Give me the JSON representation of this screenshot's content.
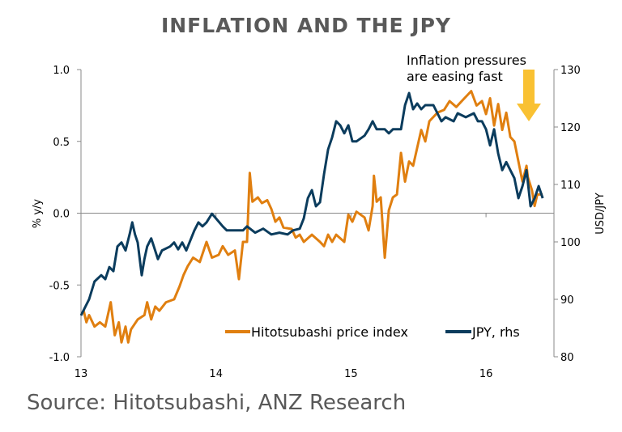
{
  "chart_data": {
    "type": "line",
    "title": "INFLATION AND THE JPY",
    "source": "Source: Hitotsubashi, ANZ Research",
    "annotation": [
      "Inflation pressures",
      "are easing fast"
    ],
    "annotation_arrow_color": "#F9C132",
    "xlabel": "",
    "ylabel": "% y/y",
    "ylabel_right": "USD/JPY",
    "xlim": [
      13,
      16.5
    ],
    "ylim": [
      -1.0,
      1.0
    ],
    "ylim_right": [
      80,
      130
    ],
    "x_ticks": [
      "13",
      "14",
      "15",
      "16"
    ],
    "y_ticks": [
      "1.0",
      "0.5",
      "0.0",
      "-0.5",
      "-1.0"
    ],
    "y_ticks_right": [
      "130",
      "120",
      "110",
      "100",
      "90",
      "80"
    ],
    "legend_position": "bottom-right",
    "series": [
      {
        "name": "Hitotsubashi price index",
        "axis": "left",
        "color": "#E07F10",
        "x": [
          13.02,
          13.04,
          13.06,
          13.1,
          13.14,
          13.18,
          13.22,
          13.25,
          13.28,
          13.3,
          13.33,
          13.35,
          13.37,
          13.42,
          13.47,
          13.49,
          13.52,
          13.55,
          13.58,
          13.63,
          13.69,
          13.73,
          13.76,
          13.79,
          13.83,
          13.88,
          13.93,
          13.97,
          14.02,
          14.05,
          14.09,
          14.14,
          14.17,
          14.2,
          14.23,
          14.25,
          14.27,
          14.31,
          14.34,
          14.38,
          14.41,
          14.44,
          14.47,
          14.5,
          14.56,
          14.59,
          14.62,
          14.65,
          14.71,
          14.77,
          14.8,
          14.83,
          14.86,
          14.89,
          14.95,
          14.98,
          15.01,
          15.04,
          15.1,
          15.13,
          15.16,
          15.17,
          15.19,
          15.22,
          15.25,
          15.28,
          15.31,
          15.34,
          15.37,
          15.4,
          15.43,
          15.46,
          15.52,
          15.55,
          15.58,
          15.64,
          15.69,
          15.73,
          15.78,
          15.82,
          15.89,
          15.93,
          15.97,
          16.0,
          16.03,
          16.06,
          16.09,
          16.12,
          16.15,
          16.18,
          16.21,
          16.24,
          16.27,
          16.3,
          16.31,
          16.34,
          16.36,
          16.38,
          16.42
        ],
        "values": [
          -0.68,
          -0.76,
          -0.71,
          -0.79,
          -0.76,
          -0.79,
          -0.62,
          -0.85,
          -0.76,
          -0.9,
          -0.79,
          -0.9,
          -0.81,
          -0.74,
          -0.71,
          -0.62,
          -0.74,
          -0.65,
          -0.68,
          -0.62,
          -0.6,
          -0.51,
          -0.43,
          -0.37,
          -0.31,
          -0.34,
          -0.2,
          -0.31,
          -0.29,
          -0.23,
          -0.29,
          -0.26,
          -0.46,
          -0.2,
          -0.2,
          0.28,
          0.08,
          0.11,
          0.07,
          0.09,
          0.03,
          -0.06,
          -0.03,
          -0.1,
          -0.11,
          -0.17,
          -0.15,
          -0.2,
          -0.15,
          -0.2,
          -0.23,
          -0.15,
          -0.2,
          -0.15,
          -0.2,
          -0.01,
          -0.06,
          0.01,
          -0.03,
          -0.12,
          0.05,
          0.26,
          0.08,
          0.11,
          -0.31,
          0.02,
          0.11,
          0.13,
          0.42,
          0.22,
          0.36,
          0.33,
          0.58,
          0.5,
          0.64,
          0.7,
          0.72,
          0.78,
          0.74,
          0.78,
          0.85,
          0.75,
          0.78,
          0.69,
          0.8,
          0.61,
          0.76,
          0.58,
          0.7,
          0.53,
          0.5,
          0.36,
          0.22,
          0.33,
          0.25,
          0.16,
          0.05,
          0.13,
          0.13
        ]
      },
      {
        "name": "JPY, rhs",
        "axis": "right",
        "color": "#0B3C5D",
        "x": [
          13.0,
          13.06,
          13.1,
          13.15,
          13.18,
          13.21,
          13.24,
          13.27,
          13.3,
          13.33,
          13.36,
          13.38,
          13.4,
          13.42,
          13.45,
          13.47,
          13.49,
          13.52,
          13.54,
          13.57,
          13.6,
          13.66,
          13.69,
          13.72,
          13.75,
          13.78,
          13.84,
          13.87,
          13.9,
          13.93,
          13.97,
          14.01,
          14.05,
          14.08,
          14.14,
          14.2,
          14.23,
          14.29,
          14.35,
          14.41,
          14.47,
          14.53,
          14.57,
          14.62,
          14.65,
          14.68,
          14.71,
          14.74,
          14.77,
          14.8,
          14.83,
          14.86,
          14.89,
          14.92,
          14.95,
          14.98,
          15.01,
          15.04,
          15.1,
          15.13,
          15.16,
          15.19,
          15.25,
          15.28,
          15.31,
          15.37,
          15.4,
          15.43,
          15.46,
          15.49,
          15.52,
          15.55,
          15.61,
          15.64,
          15.67,
          15.7,
          15.76,
          15.79,
          15.85,
          15.91,
          15.94,
          15.97,
          16.0,
          16.03,
          16.06,
          16.09,
          16.12,
          16.15,
          16.18,
          16.21,
          16.24,
          16.27,
          16.3,
          16.33,
          16.36,
          16.39,
          16.42
        ],
        "values": [
          87.2,
          90.0,
          93.1,
          94.2,
          93.5,
          95.6,
          94.9,
          99.2,
          99.9,
          98.5,
          101.3,
          103.4,
          101.3,
          99.9,
          94.2,
          97.0,
          99.2,
          100.6,
          99.2,
          97.0,
          98.5,
          99.2,
          99.9,
          98.7,
          99.9,
          98.5,
          102.0,
          103.4,
          102.7,
          103.4,
          104.9,
          103.8,
          102.7,
          102.0,
          102.0,
          102.0,
          102.7,
          101.6,
          102.3,
          101.3,
          101.6,
          101.3,
          102.0,
          102.3,
          104.1,
          107.6,
          109.0,
          106.2,
          106.9,
          111.8,
          116.1,
          118.2,
          121.0,
          120.3,
          118.9,
          120.3,
          117.5,
          117.5,
          118.5,
          119.6,
          121.0,
          119.6,
          119.6,
          118.9,
          119.6,
          119.6,
          123.8,
          125.9,
          123.1,
          124.1,
          123.1,
          123.8,
          123.8,
          122.4,
          121.0,
          121.7,
          121.0,
          122.4,
          121.7,
          122.4,
          121.0,
          121.0,
          119.6,
          116.8,
          119.6,
          115.4,
          112.5,
          113.9,
          112.5,
          111.1,
          107.6,
          109.7,
          112.5,
          106.2,
          107.6,
          109.7,
          107.6
        ]
      }
    ]
  }
}
